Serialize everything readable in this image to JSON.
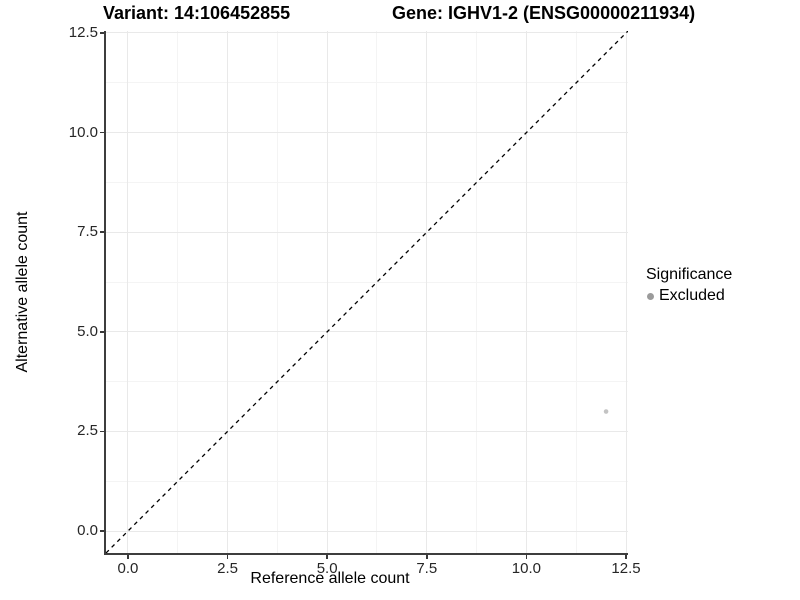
{
  "chart_data": {
    "type": "scatter",
    "title_left": "Variant: 14:106452855",
    "title_right": "Gene: IGHV1-2 (ENSG00000211934)",
    "xlabel": "Reference allele count",
    "ylabel": "Alternative allele count",
    "x_tick_labels": [
      "0.0",
      "2.5",
      "5.0",
      "7.5",
      "10.0",
      "12.5"
    ],
    "y_tick_labels": [
      "0.0",
      "2.5",
      "5.0",
      "7.5",
      "10.0",
      "12.5"
    ],
    "xlim": [
      -0.55,
      12.55
    ],
    "ylim": [
      -0.55,
      12.55
    ],
    "grid": {
      "minor": true,
      "major_color": "#e9e9e9",
      "minor_color": "#f4f4f4"
    },
    "axis_color": "#3d3d3d",
    "identity_line": {
      "slope": 1,
      "intercept": 0,
      "style": "dashed",
      "color": "#000000"
    },
    "points": [
      {
        "x": 12,
        "y": 3,
        "series": "Excluded",
        "color": "#c3c3c3"
      }
    ],
    "legend": {
      "title": "Significance",
      "position": "right",
      "items": [
        {
          "label": "Excluded",
          "color": "#9b9b9b"
        }
      ]
    },
    "background": "#ffffff"
  }
}
